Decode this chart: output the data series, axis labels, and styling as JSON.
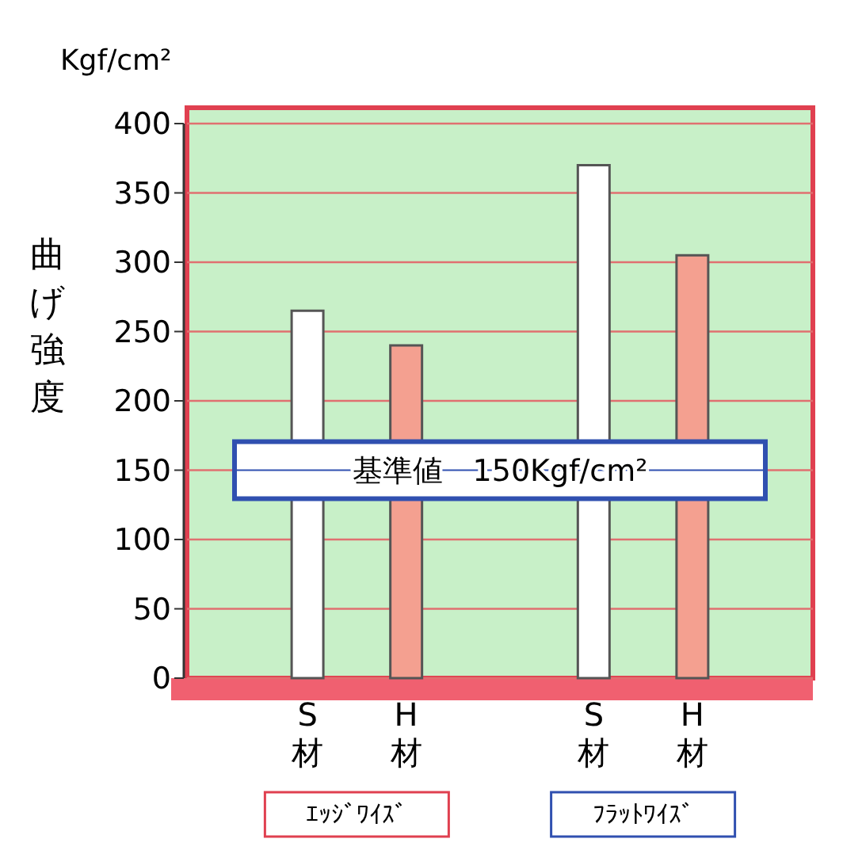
{
  "chart_data": {
    "type": "bar",
    "ylabel": "曲げ強度",
    "categories": [
      "S材",
      "H材",
      "S材",
      "H材"
    ],
    "values": [
      265,
      240,
      370,
      305
    ],
    "colors": [
      "#ffffff",
      "#f4a090",
      "#ffffff",
      "#f4a090"
    ],
    "ylim": [
      0,
      400
    ],
    "yticks": [
      0,
      50,
      100,
      150,
      200,
      250,
      300,
      350,
      400
    ],
    "grid": "y",
    "ref_lines": [
      {
        "axis": "y",
        "value": 150,
        "label": "基準値　150Kgf/cm²",
        "color": "#3050b0"
      }
    ],
    "annotations": [
      "Kgf/cm²",
      "ｴｯｼﾞﾜｲｽﾞ",
      "ﾌﾗｯﾄﾜｲｽﾞ"
    ]
  }
}
